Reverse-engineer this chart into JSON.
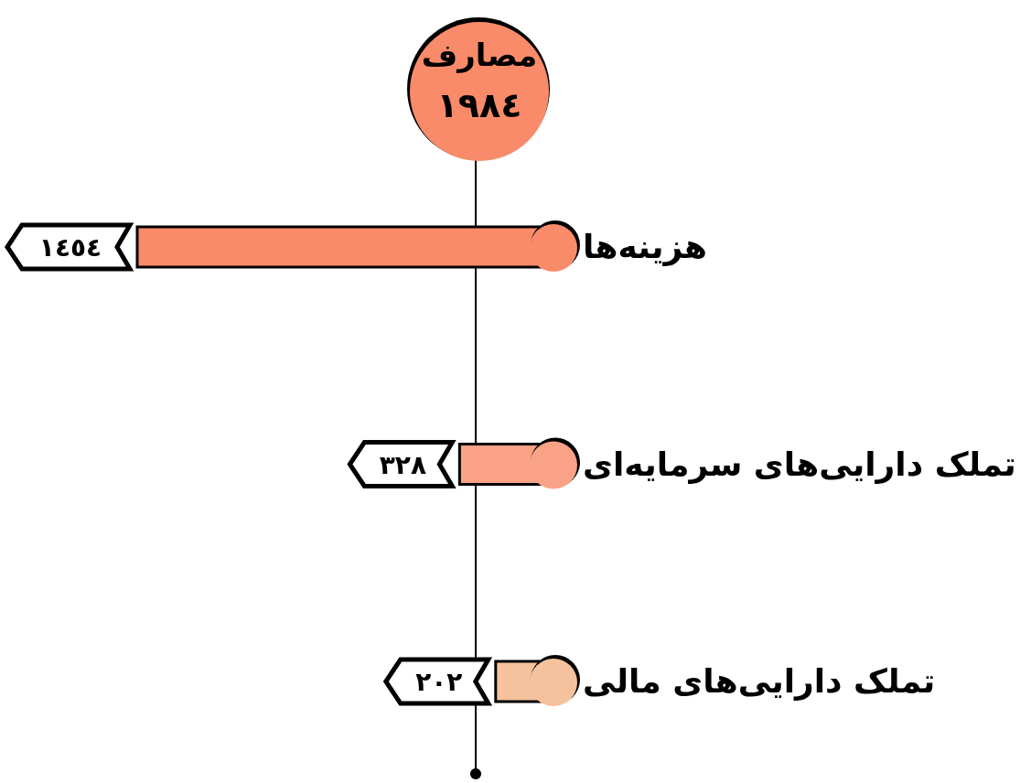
{
  "chart_data": {
    "type": "bar",
    "orientation": "horizontal",
    "title": "مصارف",
    "subtitle": "١٩٨٤",
    "categories": [
      "هزینه‌ها",
      "تملک دارایی‌های سرمایه‌ای",
      "تملک دارایی‌های مالی"
    ],
    "values": [
      1454,
      328,
      202
    ],
    "colors": [
      "#f98b6b",
      "#f9a285",
      "#f5c29d"
    ],
    "value_labels": [
      "١٤٥٤",
      "٣٢٨",
      "٢٠٢"
    ]
  }
}
